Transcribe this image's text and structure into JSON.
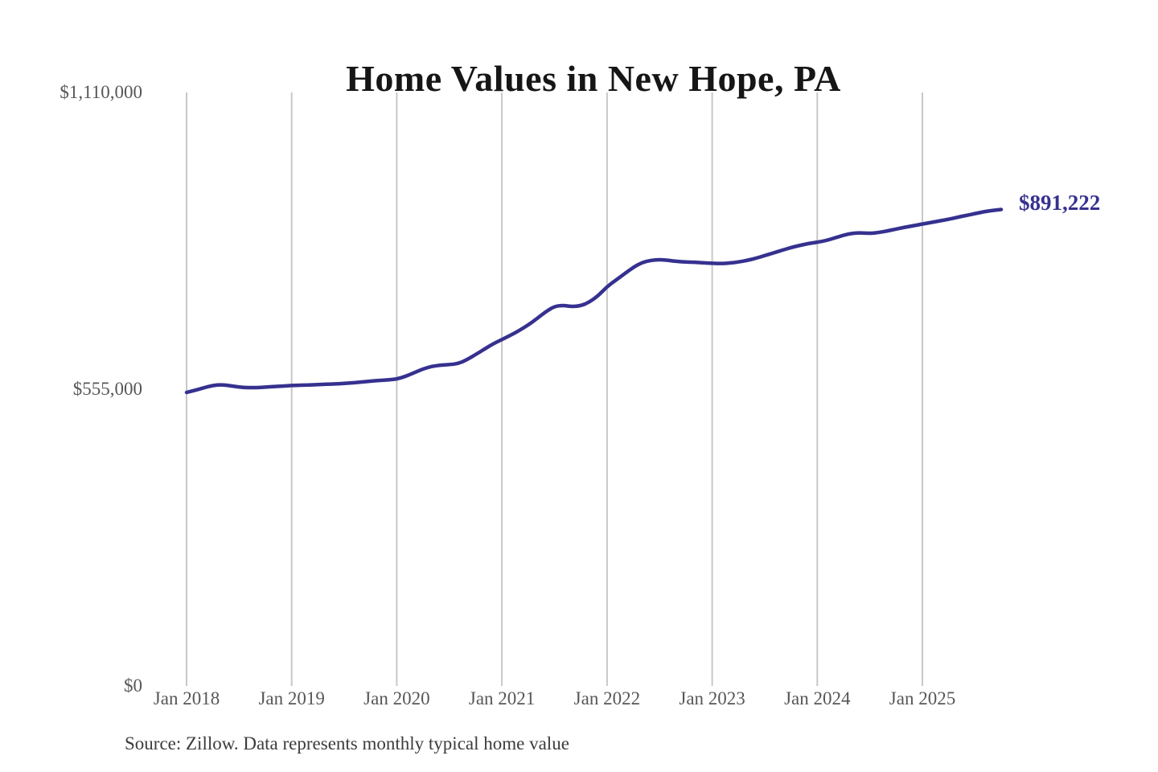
{
  "page": {
    "background": "#ffffff"
  },
  "chart_data": {
    "type": "line",
    "title": "Home Values in New Hope, PA",
    "source_note": "Source: Zillow. Data represents monthly typical home value",
    "end_label": "$891,222",
    "latest_value": 891222,
    "xlabel": "",
    "ylabel": "",
    "ylim": [
      0,
      1110000
    ],
    "grid": "vertical-only",
    "legend": "none",
    "x_ticks": [
      "Jan 2018",
      "Jan 2019",
      "Jan 2020",
      "Jan 2021",
      "Jan 2022",
      "Jan 2023",
      "Jan 2024",
      "Jan 2025"
    ],
    "y_ticks": [
      {
        "label": "$0",
        "value": 0
      },
      {
        "label": "$555,000",
        "value": 555000
      },
      {
        "label": "$1,110,000",
        "value": 1110000
      }
    ],
    "colors": {
      "line": "#36318f",
      "end_label": "#36318f",
      "grid": "#c8c8c8",
      "axis_text": "#575757",
      "title": "#161616",
      "source": "#3c3c3c"
    },
    "series": [
      {
        "name": "Monthly typical home value",
        "unit": "USD",
        "cadence": "monthly",
        "start_month": "Jan 2018",
        "end_month": "Oct 2025",
        "values": [
          549000,
          553000,
          558000,
          562000,
          563500,
          561500,
          559000,
          558000,
          558000,
          559000,
          560000,
          561000,
          562000,
          562500,
          563000,
          563500,
          564500,
          565000,
          566000,
          567000,
          568500,
          570000,
          571500,
          572500,
          574000,
          579000,
          586000,
          593000,
          598000,
          600000,
          601000,
          603000,
          610000,
          620000,
          630000,
          640000,
          648000,
          656000,
          665000,
          675000,
          687000,
          700000,
          710000,
          712000,
          709500,
          711000,
          718000,
          730000,
          747000,
          759000,
          771000,
          783000,
          792000,
          796000,
          797500,
          796000,
          794000,
          793000,
          792500,
          791500,
          790500,
          790000,
          791000,
          793000,
          796000,
          800000,
          805000,
          810000,
          815000,
          820000,
          824000,
          827500,
          830000,
          833000,
          838000,
          843000,
          847000,
          847500,
          846500,
          848000,
          851000,
          854500,
          858000,
          861000,
          864000,
          867000,
          870000,
          873000,
          876500,
          880000,
          883500,
          887000,
          889500,
          891222
        ]
      }
    ]
  }
}
